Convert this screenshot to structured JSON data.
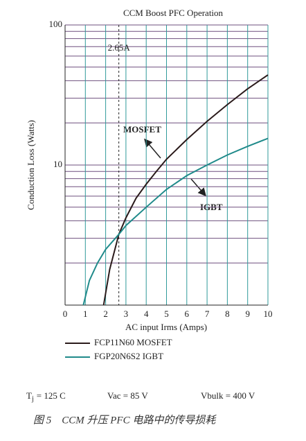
{
  "chart_data": {
    "type": "line",
    "title": "CCM Boost PFC Operation",
    "x_label": "AC input Irms (Amps)",
    "y_label": "Conduction Loss (Watts)",
    "xlim": [
      0,
      10
    ],
    "xticks": [
      0,
      1,
      2,
      3,
      4,
      5,
      6,
      7,
      8,
      9,
      10
    ],
    "ylim": [
      1,
      100
    ],
    "yticks": [
      10,
      100
    ],
    "log_y": true,
    "grid": true,
    "vline": {
      "x": 2.65,
      "label": "2.65A"
    },
    "annotations": [
      "MOSFET",
      "IGBT"
    ],
    "series": [
      {
        "name": "FCP11N60 MOSFET",
        "color": "#2a1a1a",
        "x": [
          1.9,
          2.2,
          2.65,
          3,
          3.5,
          4,
          4.5,
          5,
          6,
          7,
          8,
          9,
          10
        ],
        "values": [
          1,
          1.8,
          3.2,
          4.2,
          5.8,
          7.3,
          9.0,
          11,
          15.2,
          20.5,
          27,
          35,
          44
        ]
      },
      {
        "name": "FGP20N6S2 IGBT",
        "color": "#1f8a8a",
        "x": [
          0.9,
          1.2,
          1.6,
          2,
          2.65,
          3,
          4,
          5,
          6,
          7,
          8,
          9,
          10
        ],
        "values": [
          1,
          1.5,
          2.0,
          2.5,
          3.2,
          3.7,
          5.0,
          6.7,
          8.4,
          10,
          11.8,
          13.6,
          15.5
        ]
      }
    ]
  },
  "conditions": [
    {
      "symbol": "T",
      "subscript": "j",
      "text": "= 125 C"
    },
    "Vac = 85 V",
    "Vbulk = 400 V"
  ],
  "caption": "图 5　CCM 升压 PFC 电路中的传导损耗"
}
